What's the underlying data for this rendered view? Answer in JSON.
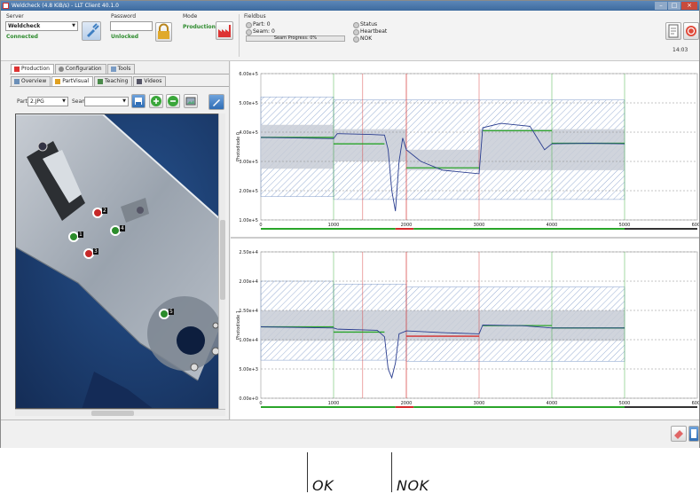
{
  "window": {
    "title": "Weldcheck (4.8 KiB/s) - LLT Client 40.1.0"
  },
  "header": {
    "server_label": "Server",
    "server_value": "Weldcheck",
    "server_status": "Connected",
    "password_label": "Password",
    "password_value": "",
    "password_status": "Unlocked",
    "mode_label": "Mode",
    "mode_value": "Production",
    "fieldbus_label": "Fieldbus",
    "part": "Part: 0",
    "seam": "Seam: 0",
    "seam_progress": "Seam Progress: 0%",
    "status": "Status",
    "heartbeat": "Heartbeat",
    "nok": "NOK",
    "time": "14:03"
  },
  "main_tabs": [
    "Production",
    "Configuration",
    "Tools"
  ],
  "sub_tabs": [
    "Overview",
    "PartVisual",
    "Teaching",
    "Videos"
  ],
  "part_bar": {
    "part_label": "Part:",
    "part_value": "2.JPG",
    "seam_label": "Seam"
  },
  "markers": [
    "1",
    "2",
    "3",
    "4",
    "5"
  ],
  "callouts": {
    "ok": "OK",
    "nok": "NOK"
  },
  "colors": {
    "ok": "#2aa52a",
    "nok": "#d42b2b",
    "signal": "#2a3d8f",
    "band": "#c8cdd6",
    "status_ok": "#2c8a2c"
  },
  "chart_data": [
    {
      "type": "line",
      "ylabel": "Photodiode 0",
      "x_ticks": [
        "0",
        "1000",
        "2000",
        "3000",
        "4000",
        "5000",
        "6000"
      ],
      "y_ticks": [
        "1.00e+5",
        "2.00e+5",
        "3.00e+5",
        "4.00e+5",
        "5.00e+5",
        "6.00e+5"
      ],
      "xlim": [
        0,
        6000
      ],
      "ylim": [
        100000,
        600000
      ],
      "series": [
        {
          "values": [
            [
              0,
              382000
            ],
            [
              500,
              380000
            ],
            [
              1000,
              378000
            ],
            [
              1050,
              395000
            ],
            [
              1500,
              392000
            ],
            [
              1700,
              390000
            ],
            [
              1750,
              340000
            ],
            [
              1800,
              200000
            ],
            [
              1850,
              130000
            ],
            [
              1900,
              300000
            ],
            [
              1950,
              380000
            ],
            [
              2000,
              340000
            ],
            [
              2200,
              300000
            ],
            [
              2500,
              270000
            ],
            [
              3000,
              258000
            ],
            [
              3050,
              415000
            ],
            [
              3300,
              430000
            ],
            [
              3700,
              420000
            ],
            [
              3800,
              380000
            ],
            [
              3900,
              340000
            ],
            [
              4000,
              360000
            ],
            [
              4500,
              362000
            ],
            [
              5000,
              360000
            ]
          ]
        }
      ],
      "reference": [
        {
          "x": [
            0,
            1000
          ],
          "y": 382000,
          "status": "ok"
        },
        {
          "x": [
            1000,
            1700
          ],
          "y": 360000,
          "status": "ok"
        },
        {
          "x": [
            2000,
            3000
          ],
          "y": 278000,
          "status": "ok"
        },
        {
          "x": [
            3050,
            4000
          ],
          "y": 405000,
          "status": "ok"
        },
        {
          "x": [
            4000,
            5000
          ],
          "y": 362000,
          "status": "ok"
        }
      ],
      "tolerance_band": [
        {
          "x": [
            0,
            1000
          ],
          "lo": 275000,
          "hi": 425000
        },
        {
          "x": [
            1000,
            2000
          ],
          "lo": 300000,
          "hi": 410000
        },
        {
          "x": [
            2000,
            3000
          ],
          "lo": 270000,
          "hi": 340000
        },
        {
          "x": [
            3000,
            5000
          ],
          "lo": 270000,
          "hi": 410000
        }
      ],
      "envelope": [
        {
          "x": [
            0,
            1000
          ],
          "lo": 180000,
          "hi": 520000
        },
        {
          "x": [
            1000,
            5000
          ],
          "lo": 170000,
          "hi": 510000
        }
      ]
    },
    {
      "type": "line",
      "ylabel": "Photodiode 1",
      "x_ticks": [
        "0",
        "1000",
        "2000",
        "3000",
        "4000",
        "5000",
        "6000"
      ],
      "y_ticks": [
        "0.00e+0",
        "5.00e+3",
        "1.00e+4",
        "1.50e+4",
        "2.00e+4",
        "2.50e+4"
      ],
      "xlim": [
        0,
        6000
      ],
      "ylim": [
        0,
        25000
      ],
      "series": [
        {
          "values": [
            [
              0,
              12200
            ],
            [
              1000,
              12000
            ],
            [
              1050,
              11800
            ],
            [
              1600,
              11600
            ],
            [
              1700,
              10500
            ],
            [
              1750,
              5000
            ],
            [
              1800,
              3500
            ],
            [
              1850,
              6000
            ],
            [
              1900,
              11000
            ],
            [
              2000,
              11500
            ],
            [
              2500,
              11200
            ],
            [
              3000,
              11000
            ],
            [
              3050,
              12500
            ],
            [
              3600,
              12400
            ],
            [
              4000,
              12000
            ],
            [
              5000,
              12000
            ]
          ]
        }
      ],
      "reference": [
        {
          "x": [
            0,
            1000
          ],
          "y": 12200,
          "status": "ok"
        },
        {
          "x": [
            1000,
            1700
          ],
          "y": 11300,
          "status": "ok"
        },
        {
          "x": [
            2000,
            3000
          ],
          "y": 10600,
          "status": "nok"
        },
        {
          "x": [
            3050,
            4000
          ],
          "y": 12400,
          "status": "ok"
        },
        {
          "x": [
            4000,
            5000
          ],
          "y": 12000,
          "status": "ok"
        }
      ],
      "tolerance_band": [
        {
          "x": [
            0,
            5000
          ],
          "lo": 9800,
          "hi": 15000
        }
      ],
      "envelope": [
        {
          "x": [
            0,
            1000
          ],
          "lo": 6500,
          "hi": 20000
        },
        {
          "x": [
            1000,
            2000
          ],
          "lo": 6500,
          "hi": 19500
        },
        {
          "x": [
            2000,
            5000
          ],
          "lo": 6300,
          "hi": 19000
        }
      ]
    }
  ]
}
